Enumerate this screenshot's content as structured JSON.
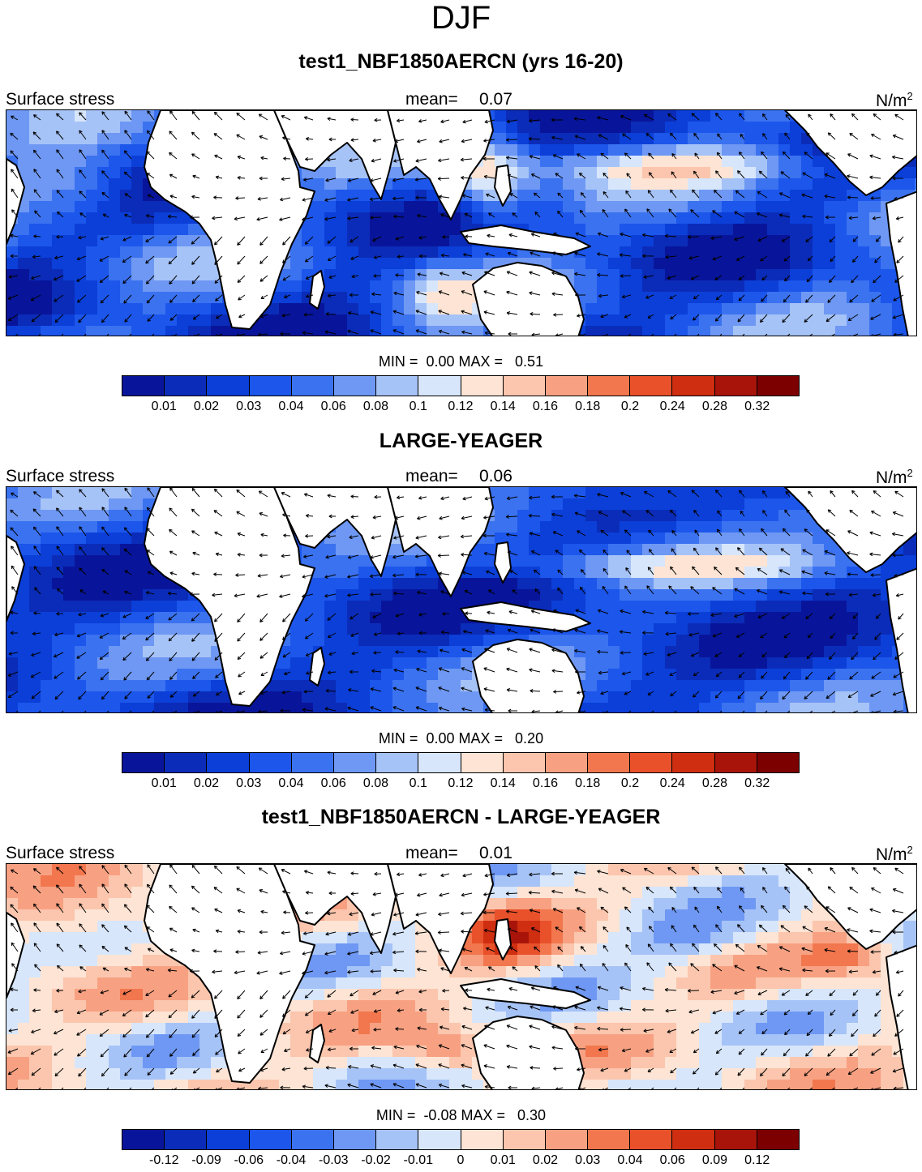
{
  "title": "DJF",
  "chart_data": [
    {
      "type": "heatmap",
      "title": "test1_NBF1850AERCN (yrs 16-20)",
      "left_label": "Surface stress",
      "mean_label": "mean=",
      "mean_value": "0.07",
      "units_base": "N/m",
      "units_exp": "2",
      "min_label": "MIN =",
      "min_value": "0.00",
      "max_label": "MAX =",
      "max_value": "0.51",
      "levels": [
        "0.01",
        "0.02",
        "0.03",
        "0.04",
        "0.06",
        "0.08",
        "0.1",
        "0.12",
        "0.14",
        "0.16",
        "0.18",
        "0.2",
        "0.24",
        "0.28",
        "0.32"
      ],
      "colors": [
        "#08159a",
        "#0b2cb8",
        "#0b3fd8",
        "#1c56eb",
        "#3b72f0",
        "#6e98f3",
        "#a6c3f7",
        "#d7e6fb",
        "#fde4d4",
        "#fbc6ad",
        "#f7a182",
        "#f2774e",
        "#e9512b",
        "#cf2e11",
        "#a8140a",
        "#7d0000"
      ]
    },
    {
      "type": "heatmap",
      "title": "LARGE-YEAGER",
      "left_label": "Surface stress",
      "mean_label": "mean=",
      "mean_value": "0.06",
      "units_base": "N/m",
      "units_exp": "2",
      "min_label": "MIN =",
      "min_value": "0.00",
      "max_label": "MAX =",
      "max_value": "0.20",
      "levels": [
        "0.01",
        "0.02",
        "0.03",
        "0.04",
        "0.06",
        "0.08",
        "0.1",
        "0.12",
        "0.14",
        "0.16",
        "0.18",
        "0.2",
        "0.24",
        "0.28",
        "0.32"
      ],
      "colors": [
        "#08159a",
        "#0b2cb8",
        "#0b3fd8",
        "#1c56eb",
        "#3b72f0",
        "#6e98f3",
        "#a6c3f7",
        "#d7e6fb",
        "#fde4d4",
        "#fbc6ad",
        "#f7a182",
        "#f2774e",
        "#e9512b",
        "#cf2e11",
        "#a8140a",
        "#7d0000"
      ]
    },
    {
      "type": "heatmap",
      "title": "test1_NBF1850AERCN - LARGE-YEAGER",
      "left_label": "Surface stress",
      "mean_label": "mean=",
      "mean_value": "0.01",
      "units_base": "N/m",
      "units_exp": "2",
      "min_label": "MIN =",
      "min_value": "-0.08",
      "max_label": "MAX =",
      "max_value": "0.30",
      "levels": [
        "-0.12",
        "-0.09",
        "-0.06",
        "-0.04",
        "-0.03",
        "-0.02",
        "-0.01",
        "0",
        "0.01",
        "0.02",
        "0.03",
        "0.04",
        "0.06",
        "0.09",
        "0.12"
      ],
      "colors": [
        "#08159a",
        "#0b2cb8",
        "#0b3fd8",
        "#1c56eb",
        "#3b72f0",
        "#6e98f3",
        "#a6c3f7",
        "#d7e6fb",
        "#fde4d4",
        "#fbc6ad",
        "#f7a182",
        "#f2774e",
        "#e9512b",
        "#cf2e11",
        "#a8140a",
        "#7d0000"
      ]
    }
  ]
}
